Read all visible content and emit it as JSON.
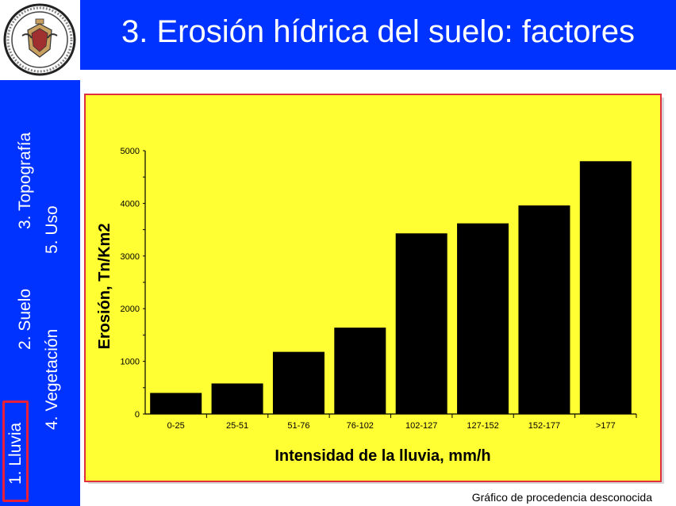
{
  "header": {
    "title": "3.  Erosión hídrica del suelo: factores"
  },
  "sidebar": {
    "items": [
      {
        "label": "1. Lluvia",
        "active": true
      },
      {
        "label": "2. Suelo"
      },
      {
        "label": "3. Topografía"
      },
      {
        "label": "4. Vegetación"
      },
      {
        "label": "5. Uso"
      }
    ]
  },
  "caption": "Gráfico de procedencia desconocida",
  "colors": {
    "header": "#0033ff",
    "panel": "#ffff33",
    "bars": "#000000",
    "active_border": "#e8203a"
  },
  "logo": {
    "icon": "university-seal-icon"
  },
  "chart_data": {
    "type": "bar",
    "xlabel": "Intensidad de la lluvia,  mm/h",
    "ylabel": "Erosión, Tn/Km2",
    "ylim": [
      0,
      5000
    ],
    "yticks": [
      "0",
      "1000",
      "2000",
      "3000",
      "4000",
      "5000"
    ],
    "categories": [
      "0-25",
      "25-51",
      "51-76",
      "76-102",
      "102-127",
      "127-152",
      "152-177",
      ">177"
    ],
    "values": [
      400,
      580,
      1180,
      1640,
      3430,
      3620,
      3960,
      4800
    ],
    "grid": false
  }
}
